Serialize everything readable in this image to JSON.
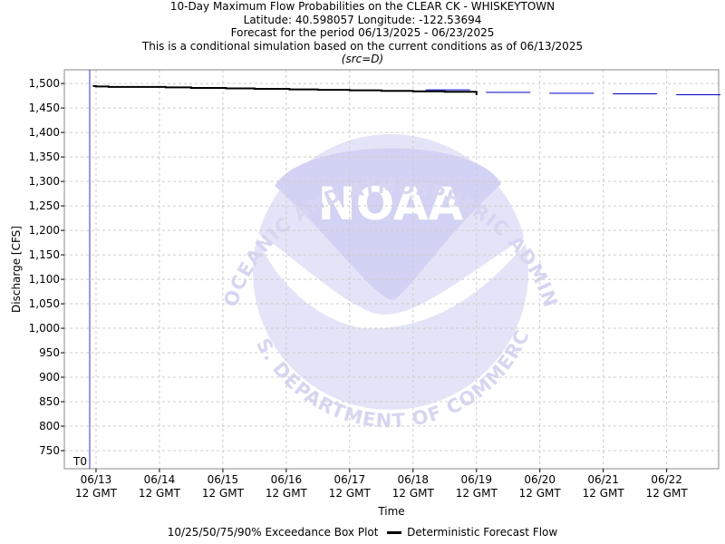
{
  "chart_data": {
    "type": "line",
    "title_lines": [
      "10-Day Maximum Flow Probabilities on the CLEAR CK - WHISKEYTOWN",
      "Latitude: 40.598057 Longitude: -122.53694",
      "Forecast for the period 06/13/2025 - 06/23/2025",
      "This is a conditional simulation based on the current conditions as of 06/13/2025"
    ],
    "subtitle": "(src=D)",
    "xlabel": "Time",
    "ylabel": "Discharge [CFS]",
    "ylim": [
      713,
      1528
    ],
    "yticks": [
      750,
      800,
      850,
      900,
      950,
      1000,
      1050,
      1100,
      1150,
      1200,
      1250,
      1300,
      1350,
      1400,
      1450,
      1500
    ],
    "xlim": [
      -0.5,
      9.82
    ],
    "x_ticks": [
      {
        "x": 0,
        "date": "06/13",
        "time": "12 GMT"
      },
      {
        "x": 1,
        "date": "06/14",
        "time": "12 GMT"
      },
      {
        "x": 2,
        "date": "06/15",
        "time": "12 GMT"
      },
      {
        "x": 3,
        "date": "06/16",
        "time": "12 GMT"
      },
      {
        "x": 4,
        "date": "06/17",
        "time": "12 GMT"
      },
      {
        "x": 5,
        "date": "06/18",
        "time": "12 GMT"
      },
      {
        "x": 6,
        "date": "06/19",
        "time": "12 GMT"
      },
      {
        "x": 7,
        "date": "06/20",
        "time": "12 GMT"
      },
      {
        "x": 8,
        "date": "06/21",
        "time": "12 GMT"
      },
      {
        "x": 9,
        "date": "06/22",
        "time": "12 GMT"
      }
    ],
    "t0": {
      "x": -0.1,
      "label": "T0"
    },
    "grid": true,
    "legend_position": "bottom",
    "watermark": {
      "text": "NOAA",
      "ring_text": "NATIONAL OCEANIC AND ATMOSPHERIC ADMINISTRATION",
      "bottom_text": "U.S. DEPARTMENT OF COMMERCE"
    },
    "series": [
      {
        "name": "Deterministic Forecast Flow",
        "color": "#000000",
        "style": "step",
        "points": [
          [
            -0.05,
            1495
          ],
          [
            0.0,
            1494
          ],
          [
            0.2,
            1493
          ],
          [
            0.5,
            1493
          ],
          [
            1.1,
            1492
          ],
          [
            1.5,
            1491
          ],
          [
            2.05,
            1490
          ],
          [
            2.5,
            1489
          ],
          [
            3.05,
            1488
          ],
          [
            3.5,
            1487
          ],
          [
            4.0,
            1486
          ],
          [
            4.5,
            1485
          ],
          [
            5.0,
            1484
          ],
          [
            5.5,
            1483
          ],
          [
            5.8,
            1483
          ],
          [
            6.0,
            1482
          ]
        ]
      },
      {
        "name": "10/25/50/75/90% Exceedance Box Plot",
        "color": "#0000cc",
        "style": "box",
        "boxes": [
          {
            "x0": 5.2,
            "x1": 5.9,
            "value": 1487
          },
          {
            "x0": 6.15,
            "x1": 6.85,
            "value": 1482
          },
          {
            "x0": 7.15,
            "x1": 7.85,
            "value": 1480
          },
          {
            "x0": 8.15,
            "x1": 8.85,
            "value": 1479
          },
          {
            "x0": 9.15,
            "x1": 9.85,
            "value": 1477
          }
        ]
      }
    ]
  },
  "legend": {
    "box_label": "10/25/50/75/90% Exceedance Box Plot",
    "line_label": "Deterministic Forecast Flow"
  }
}
